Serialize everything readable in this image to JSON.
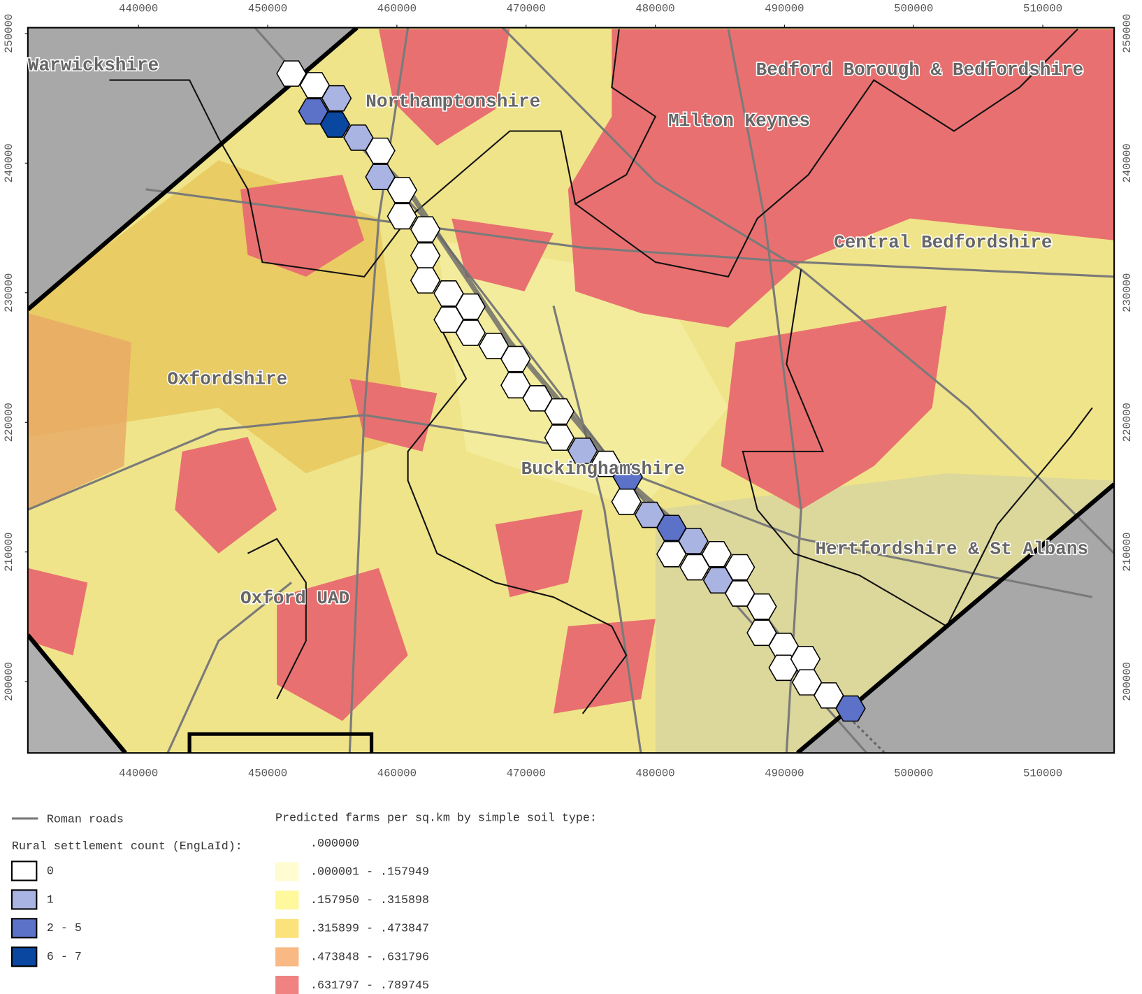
{
  "map": {
    "xticks": [
      440000,
      450000,
      460000,
      470000,
      480000,
      490000,
      500000,
      510000
    ],
    "yticks": [
      200000,
      210000,
      220000,
      230000,
      240000,
      250000
    ],
    "regions": [
      "Warwickshire",
      "Northamptonshire",
      "Bedford Borough & Bedfordshire",
      "Milton Keynes",
      "Central Bedfordshire",
      "Oxfordshire",
      "Buckinghamshire",
      "Hertfordshire & St Albans",
      "Oxford UAD"
    ],
    "legend": {
      "roads": "Roman roads",
      "settlement_title": "Rural settlement count (EngLaId):",
      "settlement_classes": [
        {
          "label": "0",
          "color": "#ffffff"
        },
        {
          "label": "1",
          "color": "#aab4e2"
        },
        {
          "label": "2 - 5",
          "color": "#5b72c8"
        },
        {
          "label": "6 - 7",
          "color": "#0a47a0"
        }
      ],
      "soil_title": "Predicted farms per sq.km by simple soil type:",
      "soil_classes": [
        {
          "label": ".000000"
        },
        {
          "label": ".000001 - .157949",
          "color": "#fffcd2"
        },
        {
          "label": ".157950 - .315898",
          "color": "#fff89c"
        },
        {
          "label": ".315899 - .473847",
          "color": "#fbe27a"
        },
        {
          "label": ".473848 - .631796",
          "color": "#f9b984"
        },
        {
          "label": ".631797 - .789745",
          "color": "#f08282"
        }
      ]
    }
  }
}
